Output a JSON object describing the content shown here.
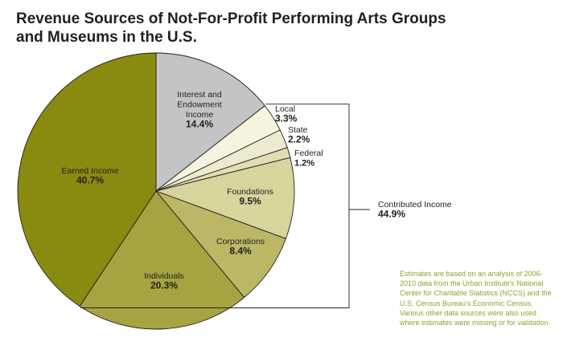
{
  "title_lines": [
    "Revenue Sources of Not-For-Profit Performing Arts Groups",
    "and Museums in the U.S."
  ],
  "chart_data": {
    "type": "pie",
    "title": "Revenue Sources of Not-For-Profit Performing Arts Groups and Museums in the U.S.",
    "slices": [
      {
        "label": "Interest and Endowment Income",
        "label_lines": [
          "Interest and",
          "Endowment",
          "Income"
        ],
        "value": 14.4,
        "value_label": "14.4%",
        "color": "#c3c4c6"
      },
      {
        "label": "Local",
        "label_lines": [
          "Local"
        ],
        "value": 3.3,
        "value_label": "3.3%",
        "color": "#f6f4df"
      },
      {
        "label": "State",
        "label_lines": [
          "State"
        ],
        "value": 2.2,
        "value_label": "2.2%",
        "color": "#ecebd0"
      },
      {
        "label": "Federal",
        "label_lines": [
          "Federal"
        ],
        "value": 1.2,
        "value_label": "1.2%",
        "color": "#e1deb4"
      },
      {
        "label": "Foundations",
        "label_lines": [
          "Foundations"
        ],
        "value": 9.5,
        "value_label": "9.5%",
        "color": "#d7d59c"
      },
      {
        "label": "Corporations",
        "label_lines": [
          "Corporations"
        ],
        "value": 8.4,
        "value_label": "8.4%",
        "color": "#bbb764"
      },
      {
        "label": "Individuals",
        "label_lines": [
          "Individuals"
        ],
        "value": 20.3,
        "value_label": "20.3%",
        "color": "#a6a441"
      },
      {
        "label": "Earned Income",
        "label_lines": [
          "Earned Income"
        ],
        "value": 40.7,
        "value_label": "40.7%",
        "color": "#898a10"
      }
    ],
    "group": {
      "label": "Contributed Income",
      "value": 44.9,
      "value_label": "44.9%",
      "members": [
        "Local",
        "State",
        "Federal",
        "Foundations",
        "Corporations",
        "Individuals"
      ]
    }
  },
  "note": "Estimates are based on an analysis of 2006-2010 data from the Urban Institute's National Center for Charitable Statistics (NCCS) and the U.S. Census Bureau's Economic Census. Various other data sources were also used where estimates were missing or for validation."
}
